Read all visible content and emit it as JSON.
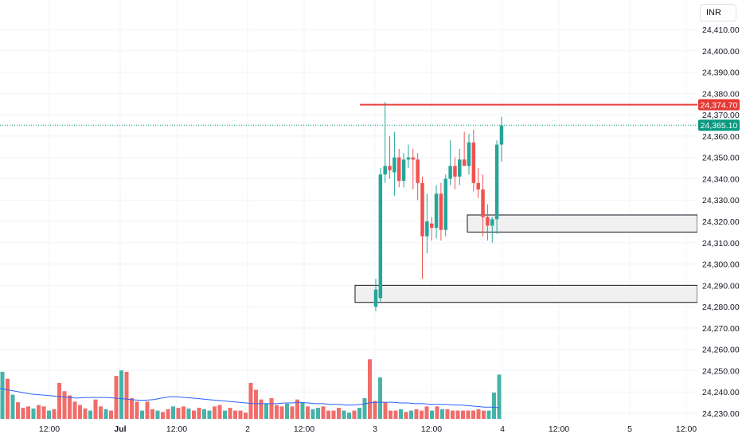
{
  "currency": "INR",
  "colors": {
    "up": "#26a69a",
    "down": "#ef5350",
    "resistance": "#e53935",
    "last_price": "#089981",
    "grid": "#f0f3fa",
    "zone_fill": "#f0f0f0",
    "zone_border": "#131722",
    "volume_ma": "#2962ff"
  },
  "price_axis": {
    "ticks": [
      "24,410.00",
      "24,400.00",
      "24,390.00",
      "24,380.00",
      "24,370.00",
      "24,360.00",
      "24,350.00",
      "24,340.00",
      "24,330.00",
      "24,320.00",
      "24,310.00",
      "24,300.00",
      "24,290.00",
      "24,280.00",
      "24,270.00",
      "24,260.00",
      "24,250.00",
      "24,240.00",
      "24,230.00"
    ],
    "resistance_label": "24,374.70",
    "last_price_label": "24,365.10"
  },
  "time_axis": {
    "labels": [
      "12:00",
      "Jul",
      "12:00",
      "2",
      "12:00",
      "3",
      "12:00",
      "4",
      "12:00",
      "5",
      "12:00"
    ]
  },
  "chart_data": {
    "type": "candlestick",
    "ylim": [
      24228,
      24416
    ],
    "resistance_level": 24374.7,
    "last_price": 24365.1,
    "zones": [
      {
        "from": 24282,
        "to": 24290
      },
      {
        "from": 24315,
        "to": 24323
      }
    ],
    "candles": [
      {
        "o": 24280,
        "h": 24293,
        "l": 24278,
        "c": 24288
      },
      {
        "o": 24284,
        "h": 24345,
        "l": 24282,
        "c": 24342
      },
      {
        "o": 24342,
        "h": 24376,
        "l": 24338,
        "c": 24346
      },
      {
        "o": 24346,
        "h": 24360,
        "l": 24340,
        "c": 24344
      },
      {
        "o": 24343,
        "h": 24362,
        "l": 24332,
        "c": 24350
      },
      {
        "o": 24350,
        "h": 24354,
        "l": 24336,
        "c": 24339
      },
      {
        "o": 24339,
        "h": 24352,
        "l": 24336,
        "c": 24349
      },
      {
        "o": 24349,
        "h": 24356,
        "l": 24345,
        "c": 24350
      },
      {
        "o": 24350,
        "h": 24354,
        "l": 24335,
        "c": 24349
      },
      {
        "o": 24349,
        "h": 24352,
        "l": 24330,
        "c": 24338
      },
      {
        "o": 24338,
        "h": 24341,
        "l": 24293,
        "c": 24313
      },
      {
        "o": 24313,
        "h": 24333,
        "l": 24305,
        "c": 24320
      },
      {
        "o": 24319,
        "h": 24322,
        "l": 24311,
        "c": 24317
      },
      {
        "o": 24317,
        "h": 24337,
        "l": 24312,
        "c": 24333
      },
      {
        "o": 24333,
        "h": 24338,
        "l": 24311,
        "c": 24316
      },
      {
        "o": 24316,
        "h": 24342,
        "l": 24313,
        "c": 24340
      },
      {
        "o": 24340,
        "h": 24358,
        "l": 24337,
        "c": 24346
      },
      {
        "o": 24346,
        "h": 24350,
        "l": 24335,
        "c": 24341
      },
      {
        "o": 24341,
        "h": 24354,
        "l": 24337,
        "c": 24349
      },
      {
        "o": 24349,
        "h": 24362,
        "l": 24346,
        "c": 24346
      },
      {
        "o": 24346,
        "h": 24361,
        "l": 24342,
        "c": 24357
      },
      {
        "o": 24357,
        "h": 24363,
        "l": 24334,
        "c": 24338
      },
      {
        "o": 24338,
        "h": 24345,
        "l": 24331,
        "c": 24335
      },
      {
        "o": 24335,
        "h": 24342,
        "l": 24313,
        "c": 24322
      },
      {
        "o": 24322,
        "h": 24328,
        "l": 24311,
        "c": 24318
      },
      {
        "o": 24318,
        "h": 24322,
        "l": 24310,
        "c": 24321
      },
      {
        "o": 24321,
        "h": 24358,
        "l": 24314,
        "c": 24356
      },
      {
        "o": 24356,
        "h": 24369,
        "l": 24348,
        "c": 24365
      }
    ],
    "volume_scale_max": 100,
    "volumes": [
      {
        "v": 68,
        "up": true
      },
      {
        "v": 58,
        "up": false
      },
      {
        "v": 35,
        "up": true
      },
      {
        "v": 24,
        "up": false
      },
      {
        "v": 16,
        "up": false
      },
      {
        "v": 18,
        "up": false
      },
      {
        "v": 15,
        "up": true
      },
      {
        "v": 20,
        "up": false
      },
      {
        "v": 18,
        "up": false
      },
      {
        "v": 12,
        "up": true
      },
      {
        "v": 14,
        "up": false
      },
      {
        "v": 52,
        "up": false
      },
      {
        "v": 40,
        "up": false
      },
      {
        "v": 34,
        "up": false
      },
      {
        "v": 25,
        "up": false
      },
      {
        "v": 20,
        "up": false
      },
      {
        "v": 15,
        "up": false
      },
      {
        "v": 12,
        "up": true
      },
      {
        "v": 28,
        "up": false
      },
      {
        "v": 18,
        "up": false
      },
      {
        "v": 14,
        "up": true
      },
      {
        "v": 12,
        "up": false
      },
      {
        "v": 62,
        "up": false
      },
      {
        "v": 70,
        "up": true
      },
      {
        "v": 68,
        "up": false
      },
      {
        "v": 30,
        "up": false
      },
      {
        "v": 25,
        "up": false
      },
      {
        "v": 12,
        "up": true
      },
      {
        "v": 25,
        "up": false
      },
      {
        "v": 14,
        "up": false
      },
      {
        "v": 12,
        "up": true
      },
      {
        "v": 10,
        "up": false
      },
      {
        "v": 14,
        "up": false
      },
      {
        "v": 18,
        "up": true
      },
      {
        "v": 16,
        "up": false
      },
      {
        "v": 18,
        "up": false
      },
      {
        "v": 15,
        "up": true
      },
      {
        "v": 12,
        "up": false
      },
      {
        "v": 16,
        "up": false
      },
      {
        "v": 14,
        "up": true
      },
      {
        "v": 12,
        "up": true
      },
      {
        "v": 18,
        "up": false
      },
      {
        "v": 20,
        "up": false
      },
      {
        "v": 12,
        "up": true
      },
      {
        "v": 16,
        "up": false
      },
      {
        "v": 12,
        "up": false
      },
      {
        "v": 12,
        "up": false
      },
      {
        "v": 9,
        "up": false
      },
      {
        "v": 52,
        "up": false
      },
      {
        "v": 42,
        "up": false
      },
      {
        "v": 28,
        "up": false
      },
      {
        "v": 22,
        "up": true
      },
      {
        "v": 30,
        "up": false
      },
      {
        "v": 20,
        "up": false
      },
      {
        "v": 18,
        "up": false
      },
      {
        "v": 22,
        "up": true
      },
      {
        "v": 18,
        "up": false
      },
      {
        "v": 28,
        "up": false
      },
      {
        "v": 24,
        "up": true
      },
      {
        "v": 18,
        "up": false
      },
      {
        "v": 14,
        "up": true
      },
      {
        "v": 16,
        "up": true
      },
      {
        "v": 18,
        "up": false
      },
      {
        "v": 12,
        "up": false
      },
      {
        "v": 12,
        "up": false
      },
      {
        "v": 16,
        "up": false
      },
      {
        "v": 12,
        "up": true
      },
      {
        "v": 9,
        "up": true
      },
      {
        "v": 12,
        "up": false
      },
      {
        "v": 16,
        "up": true
      },
      {
        "v": 30,
        "up": true
      },
      {
        "v": 86,
        "up": false
      },
      {
        "v": 26,
        "up": false
      },
      {
        "v": 60,
        "up": true
      },
      {
        "v": 24,
        "up": false
      },
      {
        "v": 12,
        "up": false
      },
      {
        "v": 12,
        "up": false
      },
      {
        "v": 14,
        "up": true
      },
      {
        "v": 10,
        "up": false
      },
      {
        "v": 12,
        "up": true
      },
      {
        "v": 14,
        "up": false
      },
      {
        "v": 12,
        "up": false
      },
      {
        "v": 18,
        "up": false
      },
      {
        "v": 12,
        "up": true
      },
      {
        "v": 18,
        "up": false
      },
      {
        "v": 14,
        "up": true
      },
      {
        "v": 14,
        "up": false
      },
      {
        "v": 12,
        "up": false
      },
      {
        "v": 12,
        "up": false
      },
      {
        "v": 12,
        "up": false
      },
      {
        "v": 12,
        "up": false
      },
      {
        "v": 12,
        "up": false
      },
      {
        "v": 14,
        "up": false
      },
      {
        "v": 12,
        "up": false
      },
      {
        "v": 12,
        "up": true
      },
      {
        "v": 38,
        "up": true
      },
      {
        "v": 64,
        "up": true
      }
    ],
    "volume_ma": [
      44,
      42,
      40,
      38,
      36,
      35,
      34,
      33,
      32,
      31,
      30,
      31,
      31,
      31,
      31,
      30,
      29,
      28,
      27,
      27,
      28,
      30,
      32,
      32,
      31,
      30,
      29,
      28,
      27,
      26,
      25,
      24,
      23,
      22,
      22,
      22,
      22,
      23,
      23,
      24,
      23,
      22,
      22,
      21,
      21,
      20,
      20,
      21,
      23,
      24,
      24,
      24,
      23,
      23,
      22,
      22,
      21,
      21,
      21,
      20,
      20,
      19,
      18,
      17,
      17,
      16
    ]
  }
}
